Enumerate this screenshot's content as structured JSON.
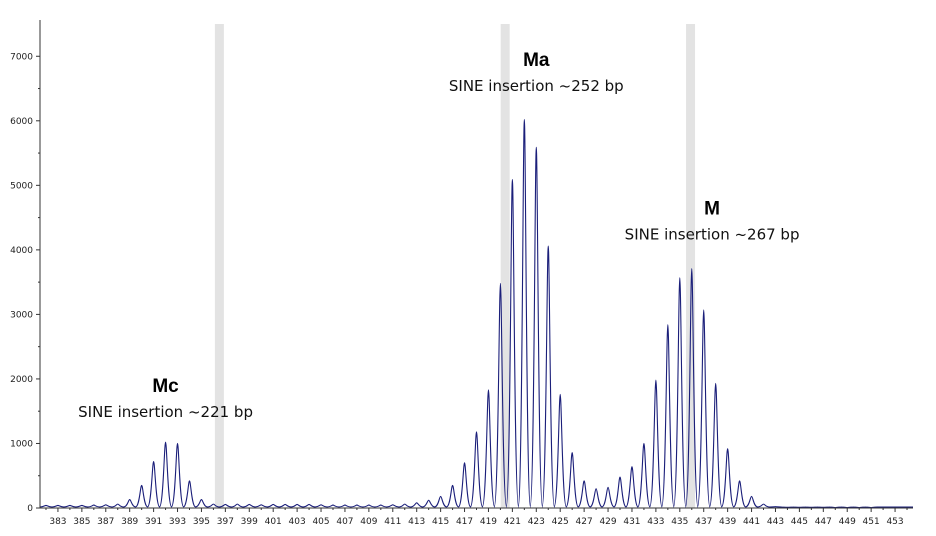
{
  "chart_data": {
    "type": "line",
    "title": "",
    "xlabel": "",
    "ylabel": "",
    "xlim": [
      381.5,
      454.5
    ],
    "ylim": [
      0,
      7500
    ],
    "grid": false,
    "legend": "none",
    "colors": {
      "trace": "#1b1f7a",
      "bin": "#e3e3e3",
      "axis": "#333333"
    },
    "y_ticks": [
      0,
      1000,
      2000,
      3000,
      4000,
      5000,
      6000,
      7000
    ],
    "x_ticks": [
      383,
      385,
      387,
      389,
      391,
      393,
      395,
      397,
      399,
      401,
      403,
      405,
      407,
      409,
      411,
      413,
      415,
      417,
      419,
      421,
      423,
      425,
      427,
      429,
      431,
      433,
      435,
      437,
      439,
      441,
      443,
      445,
      447,
      449,
      451,
      453
    ],
    "bins": [
      396.5,
      420.4,
      435.9
    ],
    "peaks": [
      {
        "x": 382.0,
        "y": 40
      },
      {
        "x": 383.0,
        "y": 40
      },
      {
        "x": 384.0,
        "y": 40
      },
      {
        "x": 385.0,
        "y": 40
      },
      {
        "x": 386.0,
        "y": 45
      },
      {
        "x": 387.0,
        "y": 50
      },
      {
        "x": 388.0,
        "y": 60
      },
      {
        "x": 389.0,
        "y": 130
      },
      {
        "x": 390.0,
        "y": 350
      },
      {
        "x": 391.0,
        "y": 720
      },
      {
        "x": 392.0,
        "y": 1020
      },
      {
        "x": 393.0,
        "y": 1000
      },
      {
        "x": 394.0,
        "y": 420
      },
      {
        "x": 395.0,
        "y": 130
      },
      {
        "x": 396.0,
        "y": 60
      },
      {
        "x": 397.0,
        "y": 55
      },
      {
        "x": 398.0,
        "y": 60
      },
      {
        "x": 399.0,
        "y": 55
      },
      {
        "x": 400.0,
        "y": 50
      },
      {
        "x": 401.0,
        "y": 55
      },
      {
        "x": 402.0,
        "y": 55
      },
      {
        "x": 403.0,
        "y": 55
      },
      {
        "x": 404.0,
        "y": 55
      },
      {
        "x": 405.0,
        "y": 50
      },
      {
        "x": 406.0,
        "y": 45
      },
      {
        "x": 407.0,
        "y": 45
      },
      {
        "x": 408.0,
        "y": 45
      },
      {
        "x": 409.0,
        "y": 45
      },
      {
        "x": 410.0,
        "y": 45
      },
      {
        "x": 411.0,
        "y": 50
      },
      {
        "x": 412.0,
        "y": 60
      },
      {
        "x": 413.0,
        "y": 80
      },
      {
        "x": 414.0,
        "y": 120
      },
      {
        "x": 415.0,
        "y": 180
      },
      {
        "x": 416.0,
        "y": 350
      },
      {
        "x": 417.0,
        "y": 700
      },
      {
        "x": 418.0,
        "y": 1180
      },
      {
        "x": 419.0,
        "y": 1830
      },
      {
        "x": 420.0,
        "y": 3480
      },
      {
        "x": 421.0,
        "y": 5090
      },
      {
        "x": 422.0,
        "y": 6020
      },
      {
        "x": 423.0,
        "y": 5590
      },
      {
        "x": 424.0,
        "y": 4060
      },
      {
        "x": 425.0,
        "y": 1760
      },
      {
        "x": 426.0,
        "y": 860
      },
      {
        "x": 427.0,
        "y": 420
      },
      {
        "x": 428.0,
        "y": 300
      },
      {
        "x": 429.0,
        "y": 320
      },
      {
        "x": 430.0,
        "y": 480
      },
      {
        "x": 431.0,
        "y": 640
      },
      {
        "x": 432.0,
        "y": 1000
      },
      {
        "x": 433.0,
        "y": 1980
      },
      {
        "x": 434.0,
        "y": 2840
      },
      {
        "x": 435.0,
        "y": 3570
      },
      {
        "x": 436.0,
        "y": 3710
      },
      {
        "x": 437.0,
        "y": 3070
      },
      {
        "x": 438.0,
        "y": 1930
      },
      {
        "x": 439.0,
        "y": 920
      },
      {
        "x": 440.0,
        "y": 420
      },
      {
        "x": 441.0,
        "y": 180
      },
      {
        "x": 442.0,
        "y": 60
      },
      {
        "x": 443.0,
        "y": 20
      },
      {
        "x": 444.0,
        "y": 10
      },
      {
        "x": 445.0,
        "y": 10
      },
      {
        "x": 446.0,
        "y": 10
      },
      {
        "x": 447.0,
        "y": 10
      },
      {
        "x": 448.0,
        "y": 5
      },
      {
        "x": 449.0,
        "y": 5
      },
      {
        "x": 450.0,
        "y": 5
      },
      {
        "x": 451.0,
        "y": 5
      }
    ],
    "annotations": [
      {
        "title": "Mc",
        "text": "SINE insertion ~221 bp",
        "x": 392.0,
        "y": 1800
      },
      {
        "title": "Ma",
        "text": "SINE insertion ~252 bp",
        "x": 423.0,
        "y": 6850
      },
      {
        "title": "M",
        "text": "SINE insertion ~267 bp",
        "x": 437.7,
        "y": 4550
      }
    ]
  }
}
